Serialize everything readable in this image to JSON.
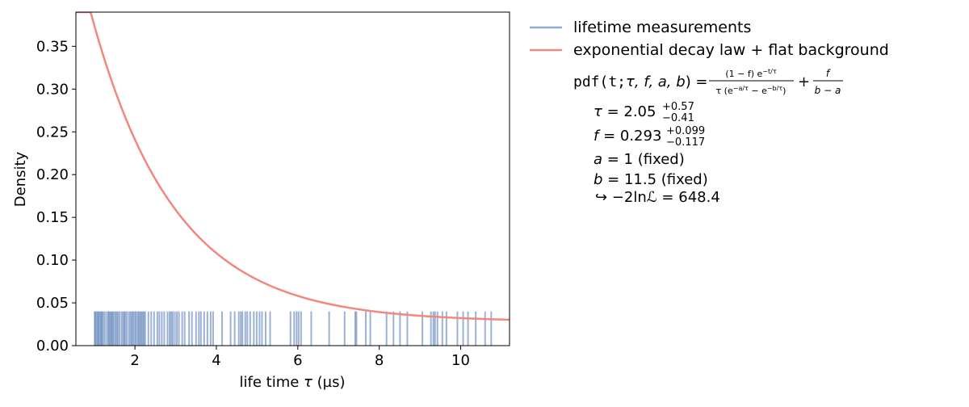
{
  "colors": {
    "rug": "#4a72b0",
    "curve": "#f08880",
    "axis": "#000000"
  },
  "chart_data": {
    "type": "line",
    "xlabel_text": "life time ",
    "xlabel_symbol": "τ",
    "xlabel_unit": " (µs)",
    "ylabel": "Density",
    "xlim": [
      0.55,
      11.2
    ],
    "ylim": [
      0.0,
      0.39
    ],
    "xticks": [
      2,
      4,
      6,
      8,
      10
    ],
    "yticks": [
      0.0,
      0.05,
      0.1,
      0.15,
      0.2,
      0.25,
      0.3,
      0.35
    ],
    "ytick_labels": [
      "0.00",
      "0.05",
      "0.10",
      "0.15",
      "0.20",
      "0.25",
      "0.30",
      "0.35"
    ],
    "series": [
      {
        "name": "lifetime measurements",
        "kind": "rug",
        "height": 0.04,
        "x": [
          1.01,
          1.03,
          1.06,
          1.09,
          1.11,
          1.14,
          1.17,
          1.19,
          1.22,
          1.26,
          1.31,
          1.35,
          1.37,
          1.4,
          1.43,
          1.45,
          1.48,
          1.52,
          1.55,
          1.58,
          1.62,
          1.67,
          1.71,
          1.74,
          1.77,
          1.81,
          1.86,
          1.9,
          1.93,
          1.96,
          2.0,
          2.03,
          2.07,
          2.1,
          2.13,
          2.16,
          2.19,
          2.22,
          2.25,
          2.33,
          2.4,
          2.47,
          2.55,
          2.6,
          2.66,
          2.72,
          2.8,
          2.85,
          2.89,
          2.93,
          2.98,
          3.03,
          3.08,
          3.16,
          3.22,
          3.33,
          3.4,
          3.5,
          3.57,
          3.62,
          3.7,
          3.78,
          3.86,
          3.92,
          4.14,
          4.35,
          4.45,
          4.55,
          4.6,
          4.64,
          4.71,
          4.76,
          4.83,
          4.92,
          4.99,
          5.06,
          5.12,
          5.21,
          5.32,
          5.82,
          5.91,
          5.97,
          6.02,
          6.08,
          6.33,
          6.77,
          7.15,
          7.41,
          7.44,
          7.67,
          7.78,
          8.18,
          8.35,
          8.51,
          8.69,
          9.06,
          9.27,
          9.33,
          9.37,
          9.43,
          9.55,
          9.65,
          9.92,
          10.06,
          10.18,
          10.37,
          10.6,
          10.75
        ]
      },
      {
        "name": "exponential decay law + flat background",
        "kind": "curve",
        "params": {
          "tau": 2.05,
          "f": 0.293,
          "a": 1,
          "b": 11.5
        },
        "x_range": [
          0.55,
          11.2
        ]
      }
    ],
    "legend_location": "outside-right",
    "grid": false
  },
  "annotations": {
    "pdf_head": "pdf(t;",
    "pdf_args": "τ, f, a, b",
    "pdf_close": ") =",
    "frac1_num": "(1 − f) e",
    "frac1_num_exp": "−t/τ",
    "frac1_den": "τ (e",
    "frac1_den_exp1": "−a/τ",
    "frac1_den_mid": " − e",
    "frac1_den_exp2": "−b/τ",
    "frac1_den_close": ")",
    "plus": "+",
    "frac2_num": "f",
    "frac2_den": "b − a",
    "tau_sym": "τ",
    "tau_val": " = 2.05",
    "tau_up": "+0.57",
    "tau_dn": "−0.41",
    "f_sym": "f",
    "f_val": " = 0.293",
    "f_up": "+0.099",
    "f_dn": "−0.117",
    "a_sym": "a",
    "a_val": " = 1 (fixed)",
    "b_sym": "b",
    "b_val": " = 11.5 (fixed)",
    "nll": "↪ −2lnℒ = 648.4"
  }
}
